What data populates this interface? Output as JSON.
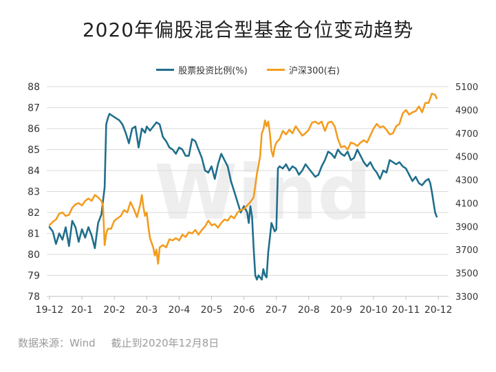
{
  "colors": {
    "left_series": "#1f6e8c",
    "right_series": "#f39c1e",
    "grid": "#d9d9d9",
    "axis": "#bfbfbf",
    "watermark": "#eeeeee"
  },
  "watermark_text": "Wind",
  "source": {
    "data_source": "数据来源：Wind",
    "cutoff": "截止到2020年12月8日"
  },
  "chart_data": {
    "type": "line",
    "title": "2020年偏股混合型基金仓位变动趋势",
    "legend_position": "top",
    "grid": true,
    "x_ticks": [
      "19-12",
      "20-1",
      "20-2",
      "20-3",
      "20-4",
      "20-5",
      "20-6",
      "20-7",
      "20-8",
      "20-9",
      "20-10",
      "20-11",
      "20-12"
    ],
    "y_left": {
      "ylim": [
        78,
        88
      ],
      "ticks": [
        78,
        79,
        80,
        81,
        82,
        83,
        84,
        85,
        86,
        87,
        88
      ]
    },
    "y_right": {
      "ylim": [
        3300,
        5100
      ],
      "ticks": [
        3300,
        3500,
        3700,
        3900,
        4100,
        4300,
        4500,
        4700,
        4900,
        5100
      ]
    },
    "series": [
      {
        "name": "股票投资比例(%)",
        "axis": "left",
        "points": [
          [
            0.0,
            81.3
          ],
          [
            0.1,
            81.1
          ],
          [
            0.2,
            80.5
          ],
          [
            0.3,
            81.0
          ],
          [
            0.4,
            80.7
          ],
          [
            0.5,
            81.3
          ],
          [
            0.6,
            80.4
          ],
          [
            0.7,
            81.6
          ],
          [
            0.8,
            81.3
          ],
          [
            0.9,
            80.6
          ],
          [
            1.0,
            81.2
          ],
          [
            1.1,
            80.8
          ],
          [
            1.2,
            81.3
          ],
          [
            1.3,
            80.9
          ],
          [
            1.4,
            80.3
          ],
          [
            1.5,
            81.5
          ],
          [
            1.6,
            81.9
          ],
          [
            1.7,
            83.2
          ],
          [
            1.75,
            86.2
          ],
          [
            1.8,
            86.5
          ],
          [
            1.85,
            86.7
          ],
          [
            1.95,
            86.6
          ],
          [
            2.05,
            86.5
          ],
          [
            2.15,
            86.4
          ],
          [
            2.25,
            86.2
          ],
          [
            2.35,
            85.8
          ],
          [
            2.45,
            85.3
          ],
          [
            2.55,
            86.0
          ],
          [
            2.65,
            86.1
          ],
          [
            2.75,
            85.1
          ],
          [
            2.85,
            86.0
          ],
          [
            2.95,
            85.8
          ],
          [
            3.0,
            86.1
          ],
          [
            3.1,
            85.9
          ],
          [
            3.2,
            86.1
          ],
          [
            3.3,
            86.3
          ],
          [
            3.4,
            86.2
          ],
          [
            3.5,
            85.6
          ],
          [
            3.6,
            85.4
          ],
          [
            3.7,
            85.1
          ],
          [
            3.8,
            85.0
          ],
          [
            3.9,
            84.8
          ],
          [
            4.0,
            85.1
          ],
          [
            4.1,
            85.0
          ],
          [
            4.2,
            84.7
          ],
          [
            4.3,
            84.7
          ],
          [
            4.4,
            85.5
          ],
          [
            4.5,
            85.4
          ],
          [
            4.6,
            85.0
          ],
          [
            4.7,
            84.6
          ],
          [
            4.8,
            84.0
          ],
          [
            4.9,
            83.9
          ],
          [
            5.0,
            84.2
          ],
          [
            5.1,
            83.6
          ],
          [
            5.2,
            84.3
          ],
          [
            5.3,
            84.8
          ],
          [
            5.4,
            84.5
          ],
          [
            5.5,
            84.2
          ],
          [
            5.6,
            83.5
          ],
          [
            5.7,
            83.0
          ],
          [
            5.8,
            82.5
          ],
          [
            5.9,
            82.0
          ],
          [
            6.0,
            82.3
          ],
          [
            6.1,
            82.0
          ],
          [
            6.15,
            81.5
          ],
          [
            6.2,
            82.3
          ],
          [
            6.25,
            81.8
          ],
          [
            6.3,
            80.3
          ],
          [
            6.35,
            79.0
          ],
          [
            6.4,
            78.8
          ],
          [
            6.45,
            79.0
          ],
          [
            6.5,
            78.9
          ],
          [
            6.55,
            78.8
          ],
          [
            6.6,
            79.3
          ],
          [
            6.65,
            79.0
          ],
          [
            6.7,
            78.9
          ],
          [
            6.75,
            80.1
          ],
          [
            6.8,
            80.8
          ],
          [
            6.85,
            81.5
          ],
          [
            6.9,
            81.3
          ],
          [
            6.95,
            81.1
          ],
          [
            7.0,
            81.2
          ],
          [
            7.05,
            84.1
          ],
          [
            7.1,
            84.2
          ],
          [
            7.2,
            84.1
          ],
          [
            7.3,
            84.3
          ],
          [
            7.4,
            84.0
          ],
          [
            7.5,
            84.2
          ],
          [
            7.6,
            84.1
          ],
          [
            7.7,
            83.8
          ],
          [
            7.8,
            84.0
          ],
          [
            7.9,
            84.3
          ],
          [
            8.0,
            84.1
          ],
          [
            8.1,
            83.9
          ],
          [
            8.2,
            83.7
          ],
          [
            8.3,
            83.8
          ],
          [
            8.4,
            84.2
          ],
          [
            8.5,
            84.5
          ],
          [
            8.6,
            84.9
          ],
          [
            8.7,
            84.8
          ],
          [
            8.8,
            84.6
          ],
          [
            8.9,
            85.0
          ],
          [
            9.0,
            84.8
          ],
          [
            9.1,
            84.7
          ],
          [
            9.2,
            84.9
          ],
          [
            9.3,
            84.5
          ],
          [
            9.4,
            84.6
          ],
          [
            9.5,
            85.0
          ],
          [
            9.6,
            84.7
          ],
          [
            9.7,
            84.4
          ],
          [
            9.8,
            84.2
          ],
          [
            9.9,
            84.4
          ],
          [
            10.0,
            84.1
          ],
          [
            10.1,
            83.9
          ],
          [
            10.2,
            83.6
          ],
          [
            10.3,
            84.0
          ],
          [
            10.4,
            83.9
          ],
          [
            10.5,
            84.5
          ],
          [
            10.6,
            84.4
          ],
          [
            10.7,
            84.3
          ],
          [
            10.8,
            84.4
          ],
          [
            10.9,
            84.2
          ],
          [
            11.0,
            84.1
          ],
          [
            11.1,
            83.8
          ],
          [
            11.2,
            83.5
          ],
          [
            11.3,
            83.7
          ],
          [
            11.4,
            83.4
          ],
          [
            11.5,
            83.3
          ],
          [
            11.6,
            83.5
          ],
          [
            11.7,
            83.6
          ],
          [
            11.75,
            83.4
          ],
          [
            11.8,
            83.0
          ],
          [
            11.85,
            82.5
          ],
          [
            11.9,
            82.0
          ],
          [
            11.95,
            81.8
          ]
        ]
      },
      {
        "name": "沪深300(右)",
        "axis": "right",
        "points": [
          [
            0.0,
            3910
          ],
          [
            0.1,
            3940
          ],
          [
            0.2,
            3960
          ],
          [
            0.3,
            4010
          ],
          [
            0.4,
            4020
          ],
          [
            0.5,
            3990
          ],
          [
            0.6,
            4000
          ],
          [
            0.7,
            4060
          ],
          [
            0.8,
            4090
          ],
          [
            0.9,
            4100
          ],
          [
            1.0,
            4080
          ],
          [
            1.1,
            4120
          ],
          [
            1.2,
            4140
          ],
          [
            1.3,
            4120
          ],
          [
            1.4,
            4170
          ],
          [
            1.5,
            4150
          ],
          [
            1.6,
            4120
          ],
          [
            1.65,
            4080
          ],
          [
            1.7,
            3740
          ],
          [
            1.75,
            3840
          ],
          [
            1.8,
            3880
          ],
          [
            1.9,
            3880
          ],
          [
            2.0,
            3950
          ],
          [
            2.1,
            3970
          ],
          [
            2.2,
            3990
          ],
          [
            2.3,
            4040
          ],
          [
            2.4,
            4020
          ],
          [
            2.5,
            4110
          ],
          [
            2.6,
            4050
          ],
          [
            2.7,
            3980
          ],
          [
            2.8,
            4090
          ],
          [
            2.85,
            4170
          ],
          [
            2.9,
            4060
          ],
          [
            2.95,
            3990
          ],
          [
            3.0,
            4020
          ],
          [
            3.05,
            3900
          ],
          [
            3.1,
            3800
          ],
          [
            3.2,
            3720
          ],
          [
            3.25,
            3650
          ],
          [
            3.3,
            3700
          ],
          [
            3.35,
            3580
          ],
          [
            3.4,
            3720
          ],
          [
            3.5,
            3740
          ],
          [
            3.6,
            3720
          ],
          [
            3.7,
            3790
          ],
          [
            3.8,
            3780
          ],
          [
            3.9,
            3800
          ],
          [
            4.0,
            3780
          ],
          [
            4.1,
            3830
          ],
          [
            4.2,
            3810
          ],
          [
            4.3,
            3850
          ],
          [
            4.4,
            3840
          ],
          [
            4.5,
            3870
          ],
          [
            4.6,
            3830
          ],
          [
            4.7,
            3870
          ],
          [
            4.8,
            3900
          ],
          [
            4.9,
            3950
          ],
          [
            5.0,
            3910
          ],
          [
            5.1,
            3920
          ],
          [
            5.2,
            3890
          ],
          [
            5.3,
            3930
          ],
          [
            5.4,
            3960
          ],
          [
            5.5,
            3950
          ],
          [
            5.6,
            3990
          ],
          [
            5.7,
            3970
          ],
          [
            5.8,
            4020
          ],
          [
            5.9,
            4040
          ],
          [
            6.0,
            4050
          ],
          [
            6.1,
            4080
          ],
          [
            6.2,
            4110
          ],
          [
            6.3,
            4150
          ],
          [
            6.35,
            4250
          ],
          [
            6.4,
            4350
          ],
          [
            6.5,
            4500
          ],
          [
            6.55,
            4700
          ],
          [
            6.6,
            4730
          ],
          [
            6.65,
            4810
          ],
          [
            6.7,
            4760
          ],
          [
            6.75,
            4800
          ],
          [
            6.8,
            4700
          ],
          [
            6.85,
            4550
          ],
          [
            6.9,
            4500
          ],
          [
            6.95,
            4580
          ],
          [
            7.0,
            4620
          ],
          [
            7.1,
            4650
          ],
          [
            7.2,
            4720
          ],
          [
            7.3,
            4690
          ],
          [
            7.4,
            4730
          ],
          [
            7.5,
            4700
          ],
          [
            7.6,
            4760
          ],
          [
            7.7,
            4720
          ],
          [
            7.8,
            4680
          ],
          [
            7.9,
            4700
          ],
          [
            8.0,
            4730
          ],
          [
            8.1,
            4790
          ],
          [
            8.2,
            4800
          ],
          [
            8.3,
            4780
          ],
          [
            8.4,
            4800
          ],
          [
            8.5,
            4720
          ],
          [
            8.6,
            4790
          ],
          [
            8.7,
            4800
          ],
          [
            8.8,
            4760
          ],
          [
            8.9,
            4650
          ],
          [
            9.0,
            4580
          ],
          [
            9.1,
            4590
          ],
          [
            9.2,
            4560
          ],
          [
            9.3,
            4620
          ],
          [
            9.4,
            4610
          ],
          [
            9.5,
            4590
          ],
          [
            9.6,
            4620
          ],
          [
            9.7,
            4640
          ],
          [
            9.8,
            4620
          ],
          [
            9.9,
            4680
          ],
          [
            10.0,
            4740
          ],
          [
            10.1,
            4780
          ],
          [
            10.2,
            4750
          ],
          [
            10.3,
            4760
          ],
          [
            10.4,
            4730
          ],
          [
            10.5,
            4690
          ],
          [
            10.6,
            4700
          ],
          [
            10.7,
            4760
          ],
          [
            10.8,
            4780
          ],
          [
            10.9,
            4870
          ],
          [
            11.0,
            4900
          ],
          [
            11.1,
            4860
          ],
          [
            11.2,
            4880
          ],
          [
            11.3,
            4890
          ],
          [
            11.4,
            4930
          ],
          [
            11.5,
            4880
          ],
          [
            11.6,
            4960
          ],
          [
            11.7,
            4960
          ],
          [
            11.8,
            5040
          ],
          [
            11.9,
            5030
          ],
          [
            11.95,
            5000
          ]
        ]
      }
    ]
  }
}
